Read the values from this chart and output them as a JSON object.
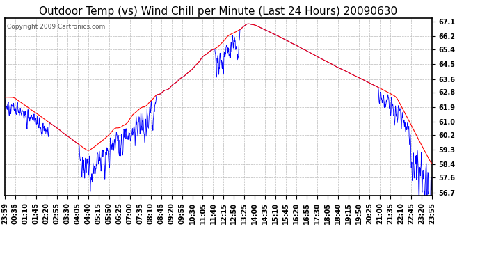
{
  "title": "Outdoor Temp (vs) Wind Chill per Minute (Last 24 Hours) 20090630",
  "copyright": "Copyright 2009 Cartronics.com",
  "ytick_labels": [
    "67.1",
    "66.2",
    "65.4",
    "64.5",
    "63.6",
    "62.8",
    "61.9",
    "61.0",
    "60.2",
    "59.3",
    "58.4",
    "57.6",
    "56.7"
  ],
  "ytick_vals": [
    67.1,
    66.2,
    65.4,
    64.5,
    63.6,
    62.8,
    61.9,
    61.0,
    60.2,
    59.3,
    58.4,
    57.6,
    56.7
  ],
  "ymin": 56.5,
  "ymax": 67.3,
  "background_color": "#ffffff",
  "plot_bg_color": "#ffffff",
  "grid_color": "#bbbbbb",
  "line_color_red": "#ff0000",
  "line_color_blue": "#0000ff",
  "title_fontsize": 11,
  "copyright_fontsize": 6.5,
  "tick_fontsize": 7,
  "xtick_labels": [
    "23:59",
    "00:35",
    "01:10",
    "01:45",
    "02:20",
    "02:55",
    "03:30",
    "04:05",
    "04:40",
    "05:15",
    "05:50",
    "06:25",
    "07:00",
    "07:35",
    "08:10",
    "08:45",
    "09:20",
    "09:55",
    "10:30",
    "11:05",
    "11:40",
    "12:15",
    "12:50",
    "13:25",
    "14:00",
    "14:35",
    "15:10",
    "15:45",
    "16:20",
    "16:55",
    "17:30",
    "18:05",
    "18:40",
    "19:15",
    "19:50",
    "20:25",
    "21:00",
    "21:35",
    "22:10",
    "22:45",
    "23:20",
    "23:55"
  ]
}
